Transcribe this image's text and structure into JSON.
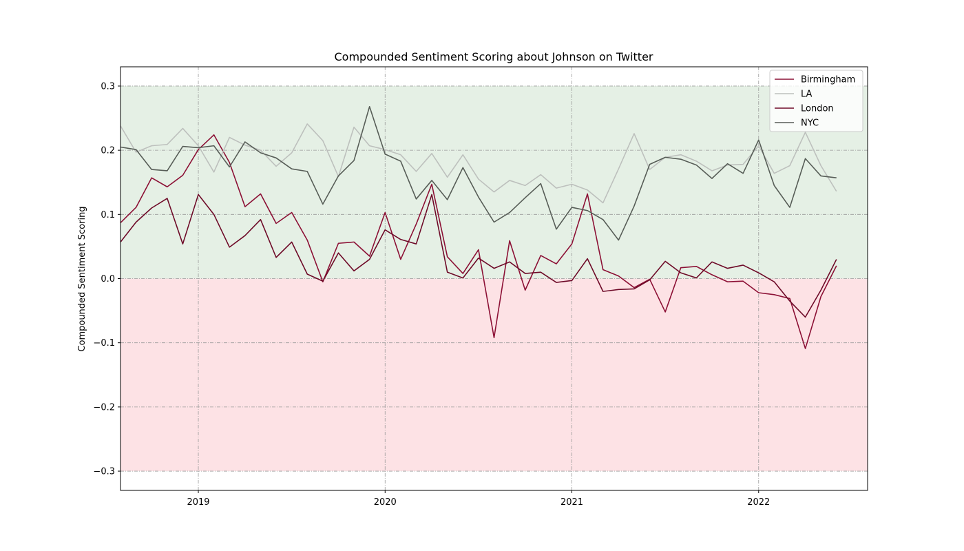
{
  "chart_data": {
    "type": "line",
    "title": "Compounded Sentiment Scoring about Johnson on Twitter",
    "xlabel": "",
    "ylabel": "Compounded Sentiment Scoring",
    "ylim": [
      -0.33,
      0.33
    ],
    "xlim": [
      "2018-08-01",
      "2022-08-01"
    ],
    "x_ticks": [
      "2019",
      "2020",
      "2021",
      "2022"
    ],
    "y_ticks": [
      "0.3",
      "0.2",
      "0.1",
      "0.0",
      "−0.1",
      "−0.2",
      "−0.3"
    ],
    "y_tick_values": [
      0.3,
      0.2,
      0.1,
      0.0,
      -0.1,
      -0.2,
      -0.3
    ],
    "grid": true,
    "legend_position": "top-right",
    "background_bands": [
      {
        "from": 0.0,
        "to": 0.3,
        "color": "#e5f0e5"
      },
      {
        "from": -0.3,
        "to": 0.0,
        "color": "#fde2e5"
      }
    ],
    "x": [
      "2018-08",
      "2018-09",
      "2018-10",
      "2018-11",
      "2018-12",
      "2019-01",
      "2019-02",
      "2019-03",
      "2019-04",
      "2019-05",
      "2019-06",
      "2019-07",
      "2019-08",
      "2019-09",
      "2019-10",
      "2019-11",
      "2019-12",
      "2020-01",
      "2020-02",
      "2020-03",
      "2020-04",
      "2020-05",
      "2020-06",
      "2020-07",
      "2020-08",
      "2020-09",
      "2020-10",
      "2020-11",
      "2020-12",
      "2021-01",
      "2021-02",
      "2021-03",
      "2021-04",
      "2021-05",
      "2021-06",
      "2021-07",
      "2021-08",
      "2021-09",
      "2021-10",
      "2021-11",
      "2021-12",
      "2022-01",
      "2022-02",
      "2022-03",
      "2022-04",
      "2022-05",
      "2022-06"
    ],
    "series": [
      {
        "name": "Birmingham",
        "color": "#8c1035",
        "values": [
          0.087,
          0.111,
          0.157,
          0.143,
          0.161,
          0.201,
          0.224,
          0.181,
          0.112,
          0.132,
          0.086,
          0.103,
          0.06,
          -0.005,
          0.055,
          0.057,
          0.035,
          0.103,
          0.03,
          0.085,
          0.147,
          0.034,
          0.008,
          0.045,
          -0.092,
          0.059,
          -0.018,
          0.036,
          0.023,
          0.054,
          0.132,
          0.014,
          0.004,
          -0.014,
          -0.001,
          -0.052,
          0.017,
          0.019,
          0.006,
          -0.005,
          -0.004,
          -0.022,
          -0.025,
          -0.031,
          -0.109,
          -0.028,
          0.02
        ]
      },
      {
        "name": "LA",
        "color": "#bdc0bd",
        "values": [
          0.238,
          0.197,
          0.207,
          0.209,
          0.234,
          0.207,
          0.166,
          0.22,
          0.208,
          0.2,
          0.175,
          0.196,
          0.241,
          0.215,
          0.159,
          0.236,
          0.207,
          0.201,
          0.193,
          0.167,
          0.195,
          0.158,
          0.193,
          0.155,
          0.135,
          0.153,
          0.145,
          0.162,
          0.141,
          0.147,
          0.138,
          0.118,
          0.171,
          0.226,
          0.17,
          0.189,
          0.193,
          0.183,
          0.168,
          0.177,
          0.178,
          0.207,
          0.164,
          0.176,
          0.228,
          0.176,
          0.136
        ]
      },
      {
        "name": "London",
        "color": "#6e0a28",
        "values": [
          0.057,
          0.088,
          0.11,
          0.125,
          0.054,
          0.131,
          0.1,
          0.049,
          0.067,
          0.092,
          0.033,
          0.057,
          0.007,
          -0.004,
          0.04,
          0.012,
          0.03,
          0.076,
          0.061,
          0.054,
          0.131,
          0.01,
          0.001,
          0.032,
          0.016,
          0.026,
          0.008,
          0.01,
          -0.006,
          -0.003,
          0.031,
          -0.02,
          -0.017,
          -0.016,
          -0.002,
          0.027,
          0.009,
          0.001,
          0.026,
          0.016,
          0.021,
          0.009,
          -0.005,
          -0.035,
          -0.06,
          -0.018,
          0.03
        ]
      },
      {
        "name": "NYC",
        "color": "#575d57",
        "values": [
          0.205,
          0.201,
          0.17,
          0.168,
          0.206,
          0.204,
          0.207,
          0.174,
          0.213,
          0.196,
          0.188,
          0.171,
          0.167,
          0.116,
          0.16,
          0.184,
          0.268,
          0.194,
          0.183,
          0.124,
          0.153,
          0.123,
          0.173,
          0.127,
          0.088,
          0.103,
          0.126,
          0.148,
          0.077,
          0.111,
          0.106,
          0.092,
          0.06,
          0.113,
          0.178,
          0.189,
          0.186,
          0.177,
          0.156,
          0.179,
          0.164,
          0.216,
          0.145,
          0.111,
          0.187,
          0.16,
          0.157
        ]
      }
    ]
  }
}
